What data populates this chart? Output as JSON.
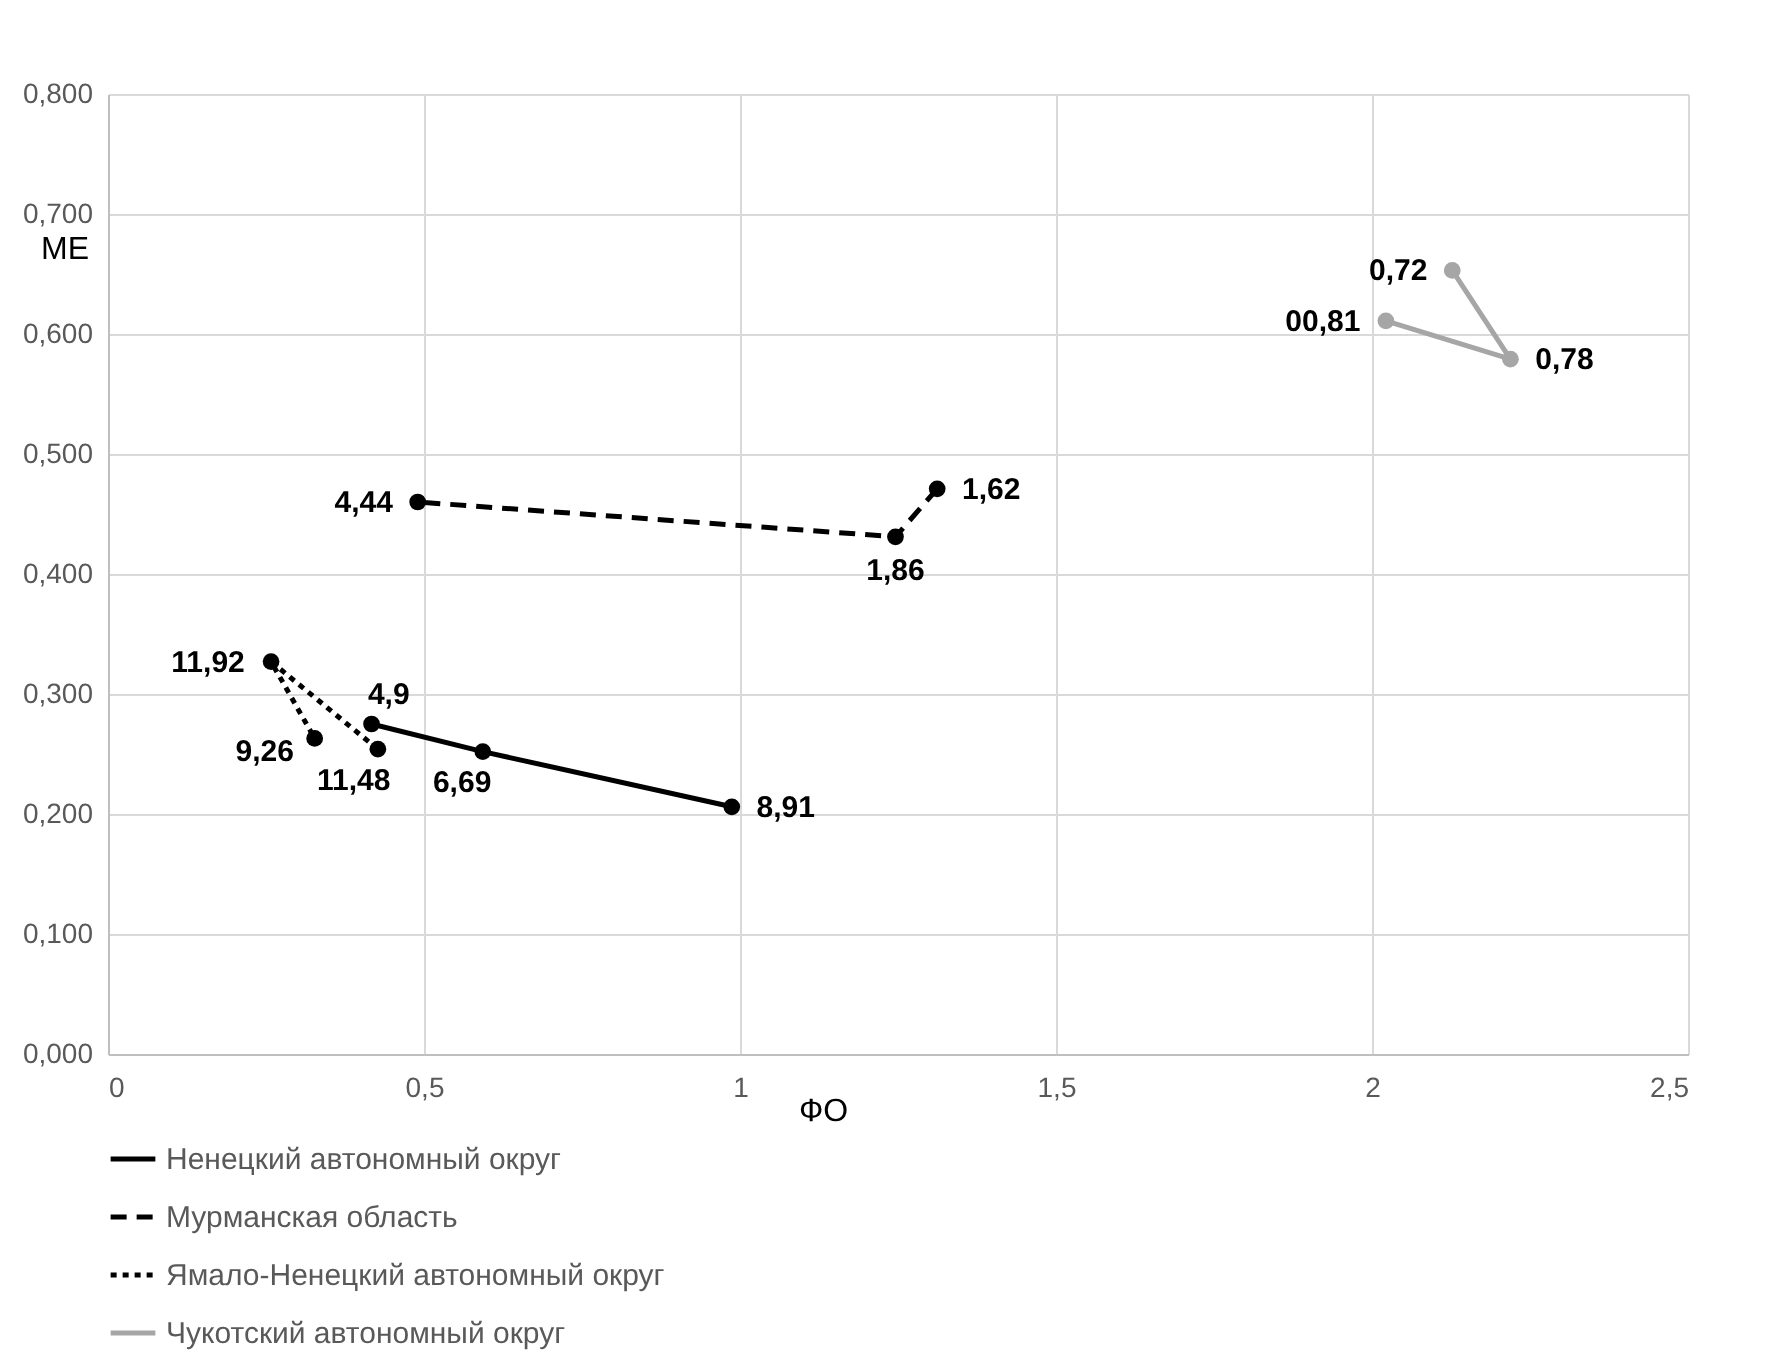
{
  "chart_data": {
    "type": "line",
    "xlabel": "ФО",
    "ylabel": "МЕ",
    "xlim": [
      0,
      2.5
    ],
    "xticks": [
      0,
      {
        "value": 0.5,
        "label": "0,5"
      },
      1,
      {
        "value": 1.5,
        "label": "1,5"
      },
      2,
      {
        "value": 2.5,
        "label": "2,5"
      }
    ],
    "ylim": [
      0,
      0.8
    ],
    "yticks": [
      {
        "value": 0,
        "label": "0,000"
      },
      {
        "value": 0.1,
        "label": "0,100"
      },
      {
        "value": 0.2,
        "label": "0,200"
      },
      {
        "value": 0.3,
        "label": "0,300"
      },
      {
        "value": 0.4,
        "label": "0,400"
      },
      {
        "value": 0.5,
        "label": "0,500"
      },
      {
        "value": 0.6,
        "label": "0,600"
      },
      {
        "value": 0.7,
        "label": "0,700"
      },
      {
        "value": 0.8,
        "label": "0,800"
      }
    ],
    "grid": true,
    "legend": "bottom",
    "marker": "circle",
    "series": [
      {
        "name": "Ненецкий автономный округ",
        "color": "#000000",
        "line_style": "solid",
        "x": [
          0.987,
          0.593,
          0.417
        ],
        "values": [
          0.206,
          0.252,
          0.275
        ]
      },
      {
        "name": "Мурманская область",
        "color": "#000000",
        "line_style": "dashed",
        "x": [
          1.312,
          1.246,
          0.49
        ],
        "values": [
          0.471,
          0.431,
          0.46
        ]
      },
      {
        "name": "Ямало-Ненецкий автономный округ",
        "color": "#000000",
        "line_style": "dotted",
        "x": [
          0.427,
          0.258,
          0.327
        ],
        "values": [
          0.254,
          0.327,
          0.263
        ]
      },
      {
        "name": "Чукотский автономный округ",
        "color": "#a6a6a6",
        "line_style": "solid",
        "x": [
          2.127,
          2.219,
          2.022
        ],
        "values": [
          0.653,
          0.579,
          0.611
        ]
      }
    ],
    "annotations": [
      {
        "text": "8,91",
        "x": 0.987,
        "y": 0.206
      },
      {
        "text": "6,69",
        "x": 0.593,
        "y": 0.252
      },
      {
        "text": "4,9",
        "x": 0.417,
        "y": 0.275
      },
      {
        "text": "1,62",
        "x": 1.312,
        "y": 0.471
      },
      {
        "text": "1,86",
        "x": 1.246,
        "y": 0.431
      },
      {
        "text": "4,44",
        "x": 0.49,
        "y": 0.46
      },
      {
        "text": "11,48",
        "x": 0.427,
        "y": 0.254
      },
      {
        "text": "11,92",
        "x": 0.258,
        "y": 0.327
      },
      {
        "text": "9,26",
        "x": 0.327,
        "y": 0.263
      },
      {
        "text": "0,72",
        "x": 2.127,
        "y": 0.653
      },
      {
        "text": "0,78",
        "x": 2.219,
        "y": 0.579
      },
      {
        "text": "00,81",
        "x": 2.022,
        "y": 0.611
      }
    ]
  }
}
